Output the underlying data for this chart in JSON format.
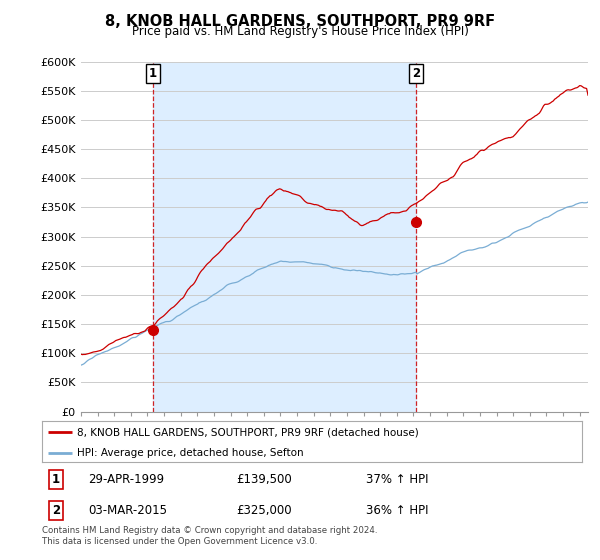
{
  "title": "8, KNOB HALL GARDENS, SOUTHPORT, PR9 9RF",
  "subtitle": "Price paid vs. HM Land Registry's House Price Index (HPI)",
  "red_label": "8, KNOB HALL GARDENS, SOUTHPORT, PR9 9RF (detached house)",
  "blue_label": "HPI: Average price, detached house, Sefton",
  "red_color": "#cc0000",
  "blue_color": "#7aadd4",
  "shade_color": "#ddeeff",
  "marker1_x": 1999.33,
  "marker1_y": 139500,
  "marker1_label": "1",
  "marker1_date": "29-APR-1999",
  "marker1_price": "£139,500",
  "marker1_hpi": "37% ↑ HPI",
  "marker2_x": 2015.17,
  "marker2_y": 325000,
  "marker2_label": "2",
  "marker2_date": "03-MAR-2015",
  "marker2_price": "£325,000",
  "marker2_hpi": "36% ↑ HPI",
  "xmin": 1995.0,
  "xmax": 2025.5,
  "ymin": 0,
  "ymax": 600000,
  "yticks": [
    0,
    50000,
    100000,
    150000,
    200000,
    250000,
    300000,
    350000,
    400000,
    450000,
    500000,
    550000,
    600000
  ],
  "ytick_labels": [
    "£0",
    "£50K",
    "£100K",
    "£150K",
    "£200K",
    "£250K",
    "£300K",
    "£350K",
    "£400K",
    "£450K",
    "£500K",
    "£550K",
    "£600K"
  ],
  "footer": "Contains HM Land Registry data © Crown copyright and database right 2024.\nThis data is licensed under the Open Government Licence v3.0.",
  "background_color": "#ffffff",
  "grid_color": "#cccccc"
}
